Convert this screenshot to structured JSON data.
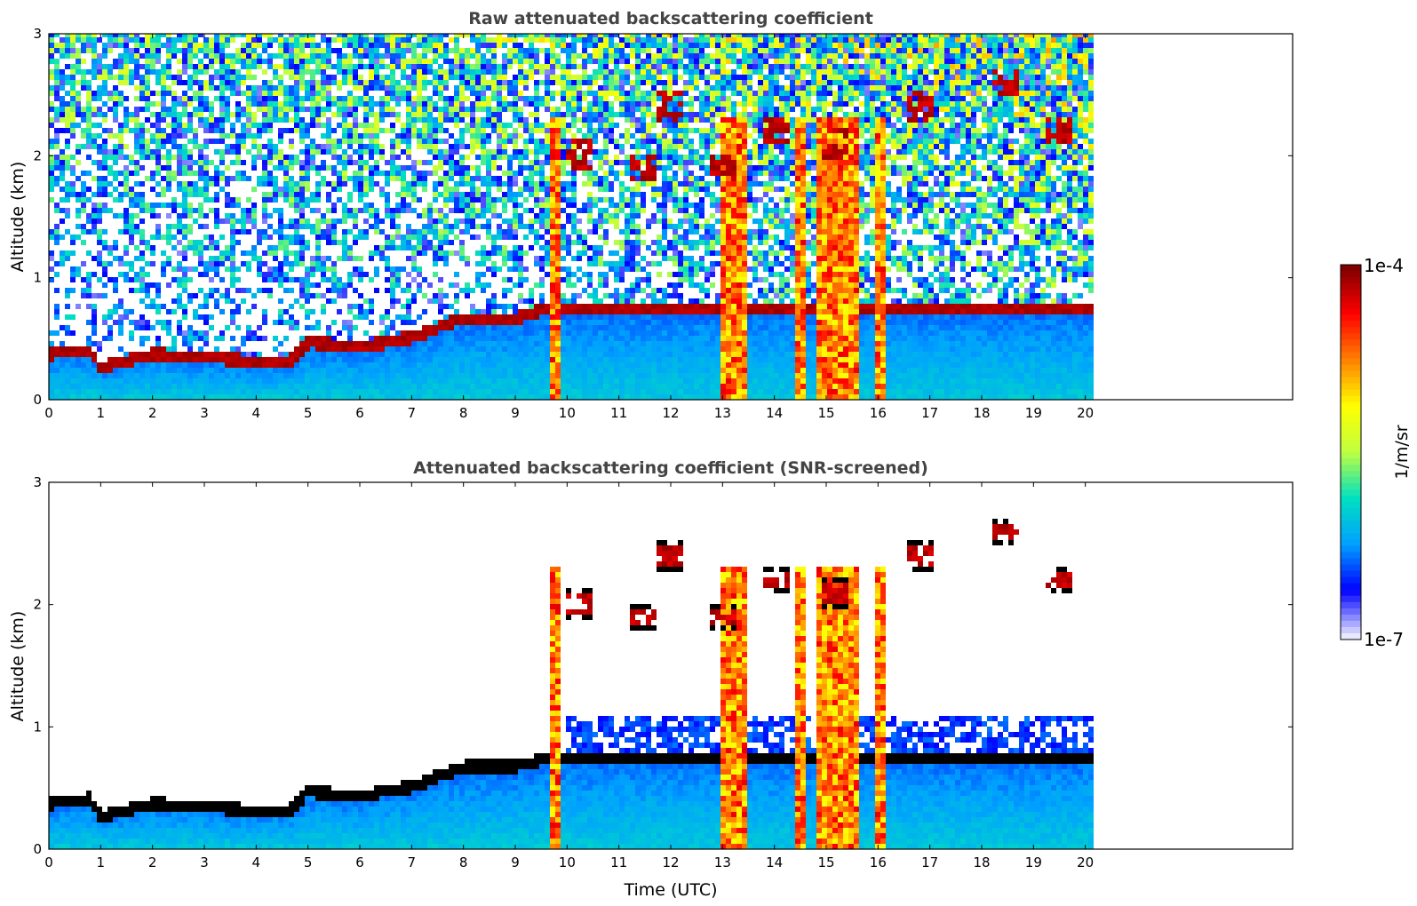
{
  "chart_data": [
    {
      "type": "heatmap",
      "title": "Raw attenuated backscattering coefficient",
      "xlabel": "",
      "ylabel": "Altitude (km)",
      "xlim": [
        0,
        24
      ],
      "ylim": [
        0,
        3
      ],
      "xticks": [
        0,
        1,
        2,
        3,
        4,
        5,
        6,
        7,
        8,
        9,
        10,
        11,
        12,
        13,
        14,
        15,
        16,
        17,
        18,
        19,
        20
      ],
      "yticks": [
        0,
        1,
        2,
        3
      ],
      "data_end_time": 20.1,
      "colorscale": "log",
      "boundary_layer": [
        {
          "t": 0,
          "h": 0.38
        },
        {
          "t": 0.8,
          "h": 0.42
        },
        {
          "t": 1.0,
          "h": 0.27
        },
        {
          "t": 2.0,
          "h": 0.38
        },
        {
          "t": 3.0,
          "h": 0.36
        },
        {
          "t": 4.0,
          "h": 0.32
        },
        {
          "t": 4.6,
          "h": 0.3
        },
        {
          "t": 5.0,
          "h": 0.48
        },
        {
          "t": 6.0,
          "h": 0.44
        },
        {
          "t": 7.0,
          "h": 0.52
        },
        {
          "t": 8.0,
          "h": 0.68
        },
        {
          "t": 9.0,
          "h": 0.68
        },
        {
          "t": 9.6,
          "h": 0.75
        }
      ],
      "clouds": [
        {
          "t": 10.2,
          "h": 2.0
        },
        {
          "t": 11.5,
          "h": 1.9
        },
        {
          "t": 12.0,
          "h": 2.4
        },
        {
          "t": 13.0,
          "h": 1.9
        },
        {
          "t": 14.0,
          "h": 2.2
        },
        {
          "t": 15.2,
          "h": 2.1
        },
        {
          "t": 16.8,
          "h": 2.4
        },
        {
          "t": 18.5,
          "h": 2.6
        },
        {
          "t": 19.5,
          "h": 2.2
        }
      ],
      "precipitation_shafts": [
        {
          "t0": 9.7,
          "t1": 9.85
        },
        {
          "t0": 13.0,
          "t1": 13.5
        },
        {
          "t0": 14.4,
          "t1": 14.6
        },
        {
          "t0": 14.8,
          "t1": 15.6
        },
        {
          "t0": 15.9,
          "t1": 16.2
        }
      ]
    },
    {
      "type": "heatmap",
      "title": "Attenuated backscattering coefficient (SNR-screened)",
      "xlabel": "Time (UTC)",
      "ylabel": "Altitude (km)",
      "xlim": [
        0,
        24
      ],
      "ylim": [
        0,
        3
      ],
      "xticks": [
        0,
        1,
        2,
        3,
        4,
        5,
        6,
        7,
        8,
        9,
        10,
        11,
        12,
        13,
        14,
        15,
        16,
        17,
        18,
        19,
        20
      ],
      "yticks": [
        0,
        1,
        2,
        3
      ],
      "data_end_time": 20.1,
      "colorscale": "log"
    }
  ],
  "colorbar": {
    "label": "1/m/sr",
    "max_label": "1e-4",
    "min_label": "1e-7",
    "colormap": "jet",
    "colors": [
      "#e8e8ff",
      "#0000ff",
      "#00a0ff",
      "#00e0c0",
      "#c0ff40",
      "#ffff00",
      "#ff8000",
      "#ff0000",
      "#800000"
    ]
  },
  "colors": {
    "background": "#ffffff",
    "axes": "#000000",
    "title": "#444444",
    "screened_edge": "#000000"
  }
}
